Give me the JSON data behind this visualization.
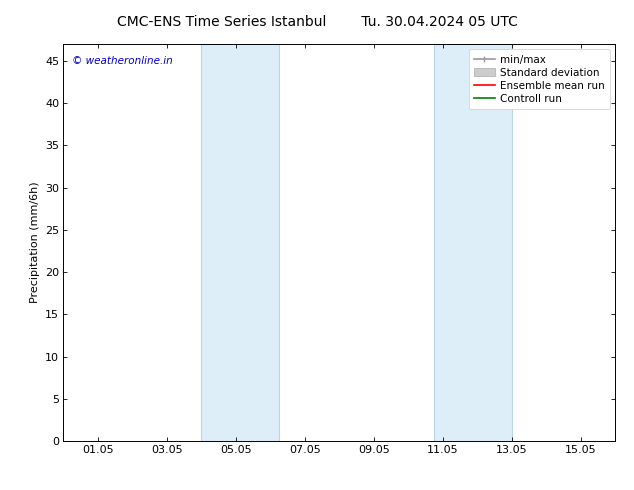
{
  "title_left": "CMC-ENS Time Series Istanbul",
  "title_right": "Tu. 30.04.2024 05 UTC",
  "ylabel": "Precipitation (mm/6h)",
  "ylim": [
    0,
    47
  ],
  "yticks": [
    0,
    5,
    10,
    15,
    20,
    25,
    30,
    35,
    40,
    45
  ],
  "xlim": [
    0,
    16
  ],
  "xtick_positions": [
    1,
    3,
    5,
    7,
    9,
    11,
    13,
    15
  ],
  "xtick_labels": [
    "01.05",
    "03.05",
    "05.05",
    "07.05",
    "09.05",
    "11.05",
    "13.05",
    "15.05"
  ],
  "shaded_bands": [
    {
      "x_start": 4.0,
      "x_end": 6.25
    },
    {
      "x_start": 10.75,
      "x_end": 13.0
    }
  ],
  "shaded_color": "#ddeef9",
  "band_edge_color": "#b8d4e8",
  "watermark_text": "© weatheronline.in",
  "watermark_color": "#0000bb",
  "background_color": "#ffffff",
  "axes_bg_color": "#ffffff",
  "title_fontsize": 10,
  "label_fontsize": 8,
  "tick_fontsize": 8,
  "legend_fontsize": 7.5,
  "minmax_color": "#999999",
  "std_face_color": "#cccccc",
  "std_edge_color": "#aaaaaa",
  "ensemble_color": "#ff0000",
  "control_color": "#008000"
}
